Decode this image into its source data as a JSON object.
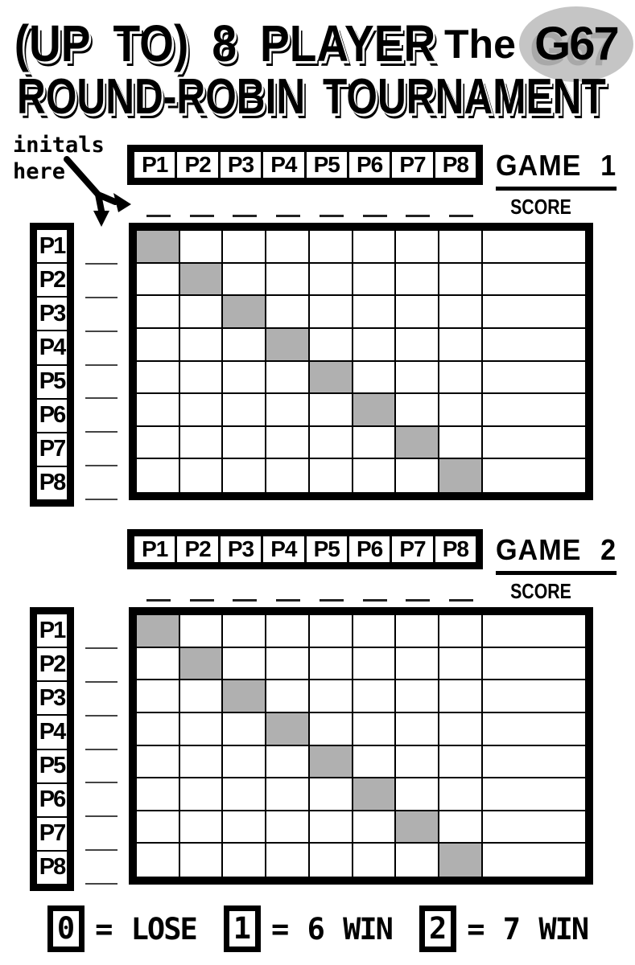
{
  "title": {
    "line1": "(UP TO) 8 PLAYER",
    "brand_the": "The",
    "brand_logo": "G67",
    "line2": "ROUND-ROBIN TOURNAMENT"
  },
  "annotation": {
    "line1": "initals",
    "line2": "here"
  },
  "players": [
    "P1",
    "P2",
    "P3",
    "P4",
    "P5",
    "P6",
    "P7",
    "P8"
  ],
  "games": [
    {
      "title": "GAME 1",
      "score_label": "SCORE"
    },
    {
      "title": "GAME 2",
      "score_label": "SCORE"
    }
  ],
  "legend": {
    "items": [
      {
        "key": "0",
        "text": "= LOSE"
      },
      {
        "key": "1",
        "text": "= 6 WIN"
      },
      {
        "key": "2",
        "text": "= 7 WIN"
      }
    ]
  },
  "colors": {
    "diagonal_fill": "#b0b0b0",
    "logo_circle": "#c5c5c5",
    "logo_shadow": "#a8a8a8"
  }
}
